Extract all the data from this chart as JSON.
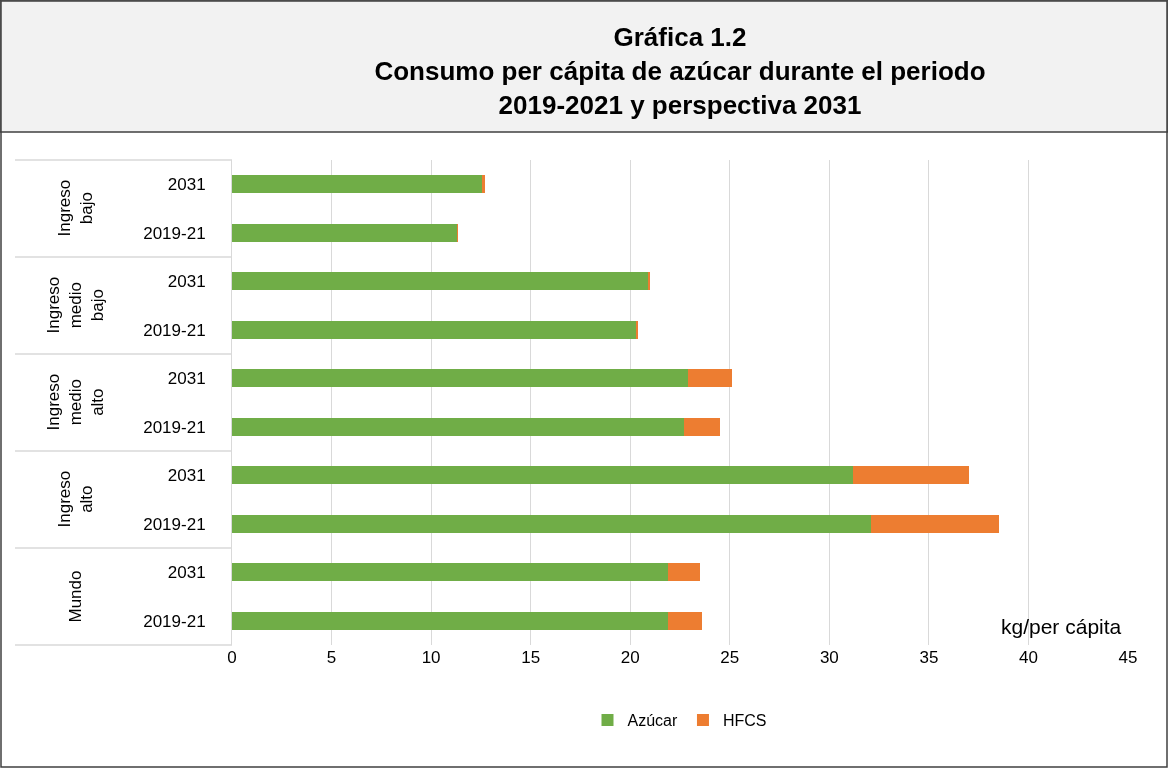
{
  "chart_data": {
    "type": "bar",
    "orientation": "horizontal",
    "stacked": true,
    "title": "Gráfica 1.2",
    "subtitle": "Consumo per cápita de azúcar durante el periodo 2019-2021 y perspectiva 2031",
    "categories": [
      "2031",
      "2019-21",
      "2031",
      "2019-21",
      "2031",
      "2019-21",
      "2031",
      "2019-21",
      "2031",
      "2019-21"
    ],
    "series": [
      {
        "name": "Azúcar",
        "color": "#70ad47",
        "values": [
          12.6,
          11.3,
          20.9,
          20.3,
          22.9,
          22.7,
          31.2,
          32.1,
          21.9,
          21.9
        ]
      },
      {
        "name": "HFCS",
        "color": "#ed7d31",
        "values": [
          0.1,
          0.05,
          0.1,
          0.1,
          2.2,
          1.8,
          5.8,
          6.4,
          1.6,
          1.7
        ]
      }
    ],
    "annotations": [
      "Ingreso bajo",
      "Ingreso medio bajo",
      "Ingreso medio alto",
      "Ingreso alto",
      "Mundo",
      "kg/per cápita"
    ],
    "xlim": [
      0,
      45
    ],
    "xticks": [
      0,
      5,
      10,
      15,
      20,
      25,
      30,
      35,
      40,
      45
    ],
    "grid": "x",
    "legend": "bottom"
  }
}
